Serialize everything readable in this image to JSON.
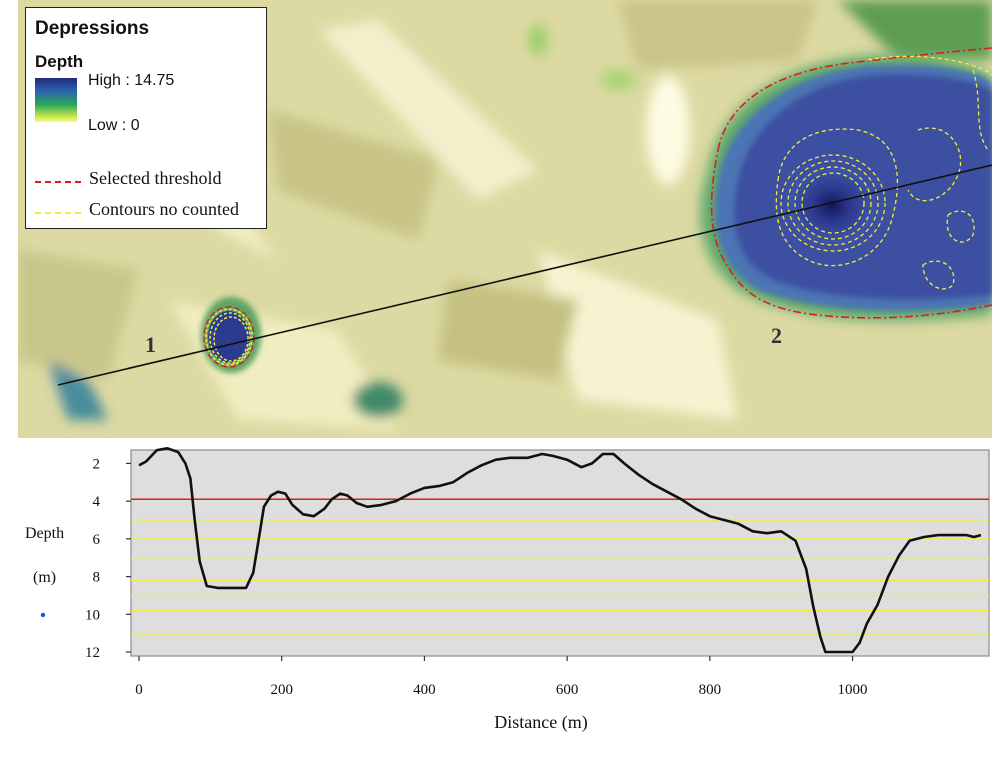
{
  "legend": {
    "title": "Depressions",
    "subtitle": "Depth",
    "high_label": "High : 14.75",
    "low_label": "Low : 0",
    "threshold_label": "Selected threshold",
    "contours_label": "Contours no counted",
    "threshold_color": "#d62020",
    "contour_color": "#f2ec40",
    "ramp_colors": [
      "#232a7a",
      "#2b63b0",
      "#2aa65a",
      "#b7e04b",
      "#fffd7a"
    ]
  },
  "map": {
    "depression_labels": [
      "1",
      "2"
    ]
  },
  "chart_data": {
    "type": "line",
    "xlabel": "Distance (m)",
    "ylabel": "Depth (m)",
    "ylabel_parts": [
      "Depth",
      "(m)"
    ],
    "xlim": [
      0,
      1180
    ],
    "ylim": [
      12,
      1.5
    ],
    "xticks": [
      0,
      200,
      400,
      600,
      800,
      1000
    ],
    "yticks": [
      2,
      4,
      6,
      8,
      10,
      12
    ],
    "threshold": 3.9,
    "contour_lines": [
      5.0,
      6.0,
      7.0,
      8.2,
      9.0,
      9.8,
      11.1
    ],
    "profile": [
      [
        0,
        2.1
      ],
      [
        10,
        1.9
      ],
      [
        25,
        1.3
      ],
      [
        40,
        1.2
      ],
      [
        55,
        1.4
      ],
      [
        65,
        2.0
      ],
      [
        72,
        2.8
      ],
      [
        78,
        5.0
      ],
      [
        85,
        7.2
      ],
      [
        95,
        8.5
      ],
      [
        110,
        8.6
      ],
      [
        130,
        8.6
      ],
      [
        150,
        8.6
      ],
      [
        160,
        7.8
      ],
      [
        170,
        5.5
      ],
      [
        175,
        4.3
      ],
      [
        185,
        3.7
      ],
      [
        195,
        3.5
      ],
      [
        205,
        3.6
      ],
      [
        215,
        4.2
      ],
      [
        230,
        4.7
      ],
      [
        245,
        4.8
      ],
      [
        260,
        4.4
      ],
      [
        270,
        3.9
      ],
      [
        282,
        3.6
      ],
      [
        292,
        3.7
      ],
      [
        305,
        4.1
      ],
      [
        320,
        4.3
      ],
      [
        340,
        4.2
      ],
      [
        360,
        4.0
      ],
      [
        380,
        3.6
      ],
      [
        400,
        3.3
      ],
      [
        420,
        3.2
      ],
      [
        440,
        3.0
      ],
      [
        460,
        2.5
      ],
      [
        480,
        2.1
      ],
      [
        500,
        1.8
      ],
      [
        520,
        1.7
      ],
      [
        545,
        1.7
      ],
      [
        565,
        1.5
      ],
      [
        580,
        1.6
      ],
      [
        600,
        1.8
      ],
      [
        620,
        2.2
      ],
      [
        635,
        2.0
      ],
      [
        650,
        1.5
      ],
      [
        665,
        1.5
      ],
      [
        680,
        2.0
      ],
      [
        700,
        2.6
      ],
      [
        720,
        3.1
      ],
      [
        740,
        3.5
      ],
      [
        760,
        3.9
      ],
      [
        780,
        4.4
      ],
      [
        800,
        4.8
      ],
      [
        820,
        5.0
      ],
      [
        840,
        5.2
      ],
      [
        860,
        5.6
      ],
      [
        880,
        5.7
      ],
      [
        900,
        5.6
      ],
      [
        920,
        6.1
      ],
      [
        935,
        7.6
      ],
      [
        945,
        9.6
      ],
      [
        955,
        11.2
      ],
      [
        962,
        12.0
      ],
      [
        985,
        12.0
      ],
      [
        1000,
        12.0
      ],
      [
        1010,
        11.5
      ],
      [
        1020,
        10.5
      ],
      [
        1035,
        9.5
      ],
      [
        1050,
        8.0
      ],
      [
        1065,
        6.9
      ],
      [
        1080,
        6.1
      ],
      [
        1100,
        5.9
      ],
      [
        1120,
        5.8
      ],
      [
        1140,
        5.8
      ],
      [
        1160,
        5.8
      ],
      [
        1170,
        5.9
      ],
      [
        1180,
        5.8
      ]
    ]
  }
}
